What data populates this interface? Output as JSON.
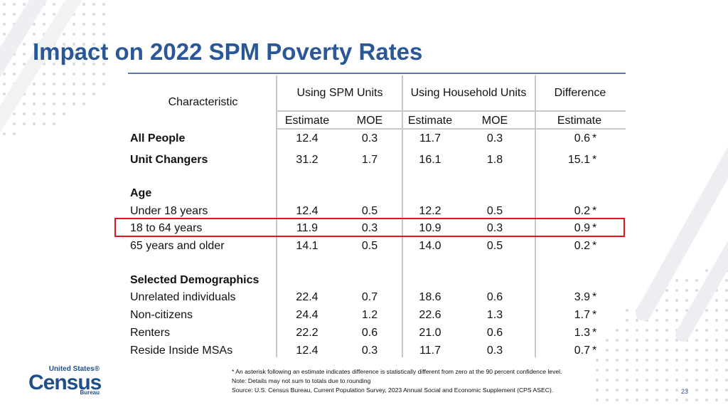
{
  "slide": {
    "title": "Impact on 2022 SPM Poverty Rates",
    "page_number": "23"
  },
  "table": {
    "characteristic_header": "Characteristic",
    "group_headers": [
      "Using SPM Units",
      "Using Household Units",
      "Difference"
    ],
    "sub_headers": [
      "Estimate",
      "MOE",
      "Estimate",
      "MOE",
      "Estimate"
    ],
    "rows": [
      {
        "label": "All People",
        "spm_est": "12.4",
        "spm_moe": "0.3",
        "hh_est": "11.7",
        "hh_moe": "0.3",
        "diff": "0.6",
        "sig": "*"
      },
      {
        "label": "Unit Changers",
        "spm_est": "31.2",
        "spm_moe": "1.7",
        "hh_est": "16.1",
        "hh_moe": "1.8",
        "diff": "15.1",
        "sig": "*"
      },
      {
        "label": "Under 18 years",
        "spm_est": "12.4",
        "spm_moe": "0.5",
        "hh_est": "12.2",
        "hh_moe": "0.5",
        "diff": "0.2",
        "sig": "*"
      },
      {
        "label": "18 to 64 years",
        "spm_est": "11.9",
        "spm_moe": "0.3",
        "hh_est": "10.9",
        "hh_moe": "0.3",
        "diff": "0.9",
        "sig": "*"
      },
      {
        "label": "65 years and older",
        "spm_est": "14.1",
        "spm_moe": "0.5",
        "hh_est": "14.0",
        "hh_moe": "0.5",
        "diff": "0.2",
        "sig": "*"
      },
      {
        "label": "Unrelated individuals",
        "spm_est": "22.4",
        "spm_moe": "0.7",
        "hh_est": "18.6",
        "hh_moe": "0.6",
        "diff": "3.9",
        "sig": "*"
      },
      {
        "label": "Non-citizens",
        "spm_est": "24.4",
        "spm_moe": "1.2",
        "hh_est": "22.6",
        "hh_moe": "1.3",
        "diff": "1.7",
        "sig": "*"
      },
      {
        "label": "Renters",
        "spm_est": "22.2",
        "spm_moe": "0.6",
        "hh_est": "21.0",
        "hh_moe": "0.6",
        "diff": "1.3",
        "sig": "*"
      },
      {
        "label": "Reside Inside MSAs",
        "spm_est": "12.4",
        "spm_moe": "0.3",
        "hh_est": "11.7",
        "hh_moe": "0.3",
        "diff": "0.7",
        "sig": "*"
      }
    ],
    "section_age": "Age",
    "section_demographics": "Selected Demographics"
  },
  "footnotes": [
    "* An asterisk following an estimate indicates difference is statistically different from zero at the 90 percent confidence level.",
    "Note: Details may not sum to totals due to rounding",
    "Source: U.S. Census Bureau, Current Population Survey, 2023 Annual Social and Economic Supplement (CPS ASEC)."
  ],
  "logo": {
    "line1": "United States®",
    "line2": "Census",
    "line3": "Bureau"
  },
  "colors": {
    "title": "#2b5797",
    "highlight": "#e0141e",
    "rule": "#5b79a8"
  }
}
